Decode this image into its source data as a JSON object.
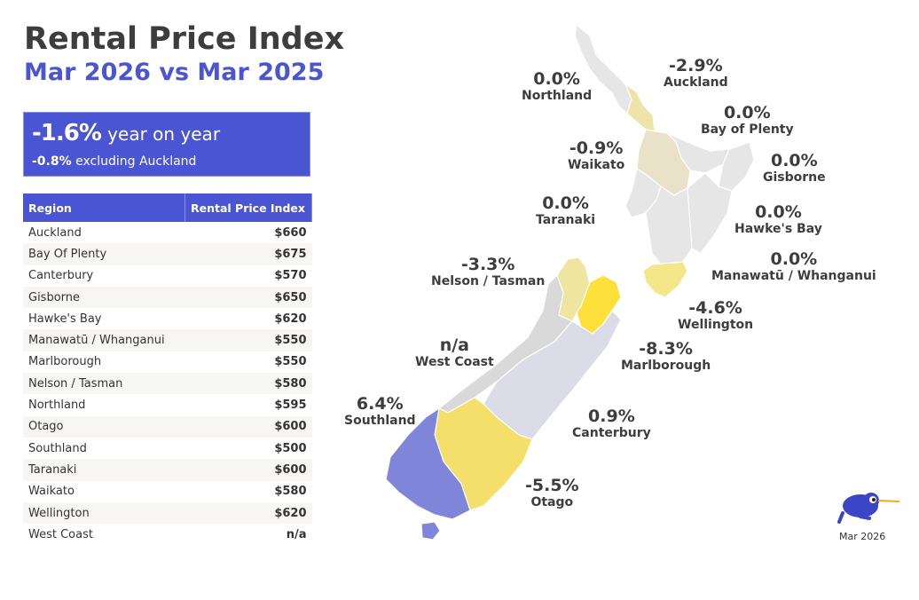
{
  "title": "Rental Price Index",
  "subtitle": "Mar 2026 vs Mar 2025",
  "kpi": {
    "value": "-1.6%",
    "value_label": "year on year",
    "sub_value": "-0.8%",
    "sub_label": "excluding Auckland"
  },
  "table": {
    "headers": [
      "Region",
      "Rental Price Index"
    ],
    "rows": [
      [
        "Auckland",
        "$660"
      ],
      [
        "Bay Of Plenty",
        "$675"
      ],
      [
        "Canterbury",
        "$570"
      ],
      [
        "Gisborne",
        "$650"
      ],
      [
        "Hawke's Bay",
        "$620"
      ],
      [
        "Manawatū / Whanganui",
        "$550"
      ],
      [
        "Marlborough",
        "$550"
      ],
      [
        "Nelson / Tasman",
        "$580"
      ],
      [
        "Northland",
        "$595"
      ],
      [
        "Otago",
        "$600"
      ],
      [
        "Southland",
        "$500"
      ],
      [
        "Taranaki",
        "$600"
      ],
      [
        "Waikato",
        "$580"
      ],
      [
        "Wellington",
        "$620"
      ],
      [
        "West Coast",
        "n/a"
      ]
    ]
  },
  "map_labels": [
    {
      "pct": "0.0%",
      "name": "Northland"
    },
    {
      "pct": "-2.9%",
      "name": "Auckland"
    },
    {
      "pct": "0.0%",
      "name": "Bay of Plenty"
    },
    {
      "pct": "-0.9%",
      "name": "Waikato"
    },
    {
      "pct": "0.0%",
      "name": "Gisborne"
    },
    {
      "pct": "0.0%",
      "name": "Taranaki"
    },
    {
      "pct": "0.0%",
      "name": "Hawke's Bay"
    },
    {
      "pct": "-3.3%",
      "name": "Nelson / Tasman"
    },
    {
      "pct": "0.0%",
      "name": "Manawatū / Whanganui"
    },
    {
      "pct": "-4.6%",
      "name": "Wellington"
    },
    {
      "pct": "n/a",
      "name": "West Coast"
    },
    {
      "pct": "-8.3%",
      "name": "Marlborough"
    },
    {
      "pct": "6.4%",
      "name": "Southland"
    },
    {
      "pct": "0.9%",
      "name": "Canterbury"
    },
    {
      "pct": "-5.5%",
      "name": "Otago"
    }
  ],
  "colors": {
    "accent": "#4a55d4",
    "positive": "#7f86d9",
    "neutral": "#e6e6e6",
    "small_decline": "#efe5a0",
    "large_decline": "#fde03a"
  },
  "footer_date": "Mar 2026"
}
